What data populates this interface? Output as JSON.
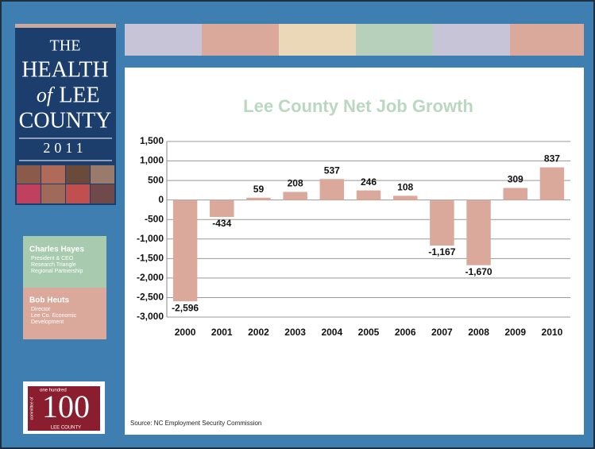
{
  "logo": {
    "lines": [
      "THE",
      "HEALTH",
      "of",
      "LEE",
      "COUNTY",
      "2011"
    ]
  },
  "speakers": [
    {
      "name": "Charles Hayes",
      "lines": [
        "President & CEO",
        "Research Triangle",
        "Regional Partnership"
      ]
    },
    {
      "name": "Bob Heuts",
      "lines": [
        "Director",
        "Lee Co. Economic",
        "Development"
      ]
    }
  ],
  "badge": {
    "top": "one hundred",
    "number": "100",
    "side": "committee of",
    "bottom": "LEE COUNTY"
  },
  "source": "Source: NC Employment Security Commission",
  "chart_data": {
    "type": "bar",
    "title": "Lee County Net Job Growth",
    "categories": [
      "2000",
      "2001",
      "2002",
      "2003",
      "2004",
      "2005",
      "2006",
      "2007",
      "2008",
      "2009",
      "2010"
    ],
    "values": [
      -2596,
      -434,
      59,
      208,
      537,
      246,
      108,
      -1167,
      -1670,
      309,
      837
    ],
    "value_labels": [
      "-2,596",
      "-434",
      "59",
      "208",
      "537",
      "246",
      "108",
      "-1,167",
      "-1,670",
      "309",
      "837"
    ],
    "color": "#dba99b",
    "ylim": [
      -3000,
      1500
    ],
    "yticks": [
      {
        "value": -3000,
        "label": "-3,000"
      },
      {
        "value": -2500,
        "label": "-2,500"
      },
      {
        "value": -2000,
        "label": "-2,000"
      },
      {
        "value": -1500,
        "label": "-1,500"
      },
      {
        "value": -1000,
        "label": "-1,000"
      },
      -500,
      0,
      500,
      {
        "value": 1000,
        "label": "1,000"
      },
      {
        "value": 1500,
        "label": "1,500"
      }
    ],
    "grid": true
  }
}
